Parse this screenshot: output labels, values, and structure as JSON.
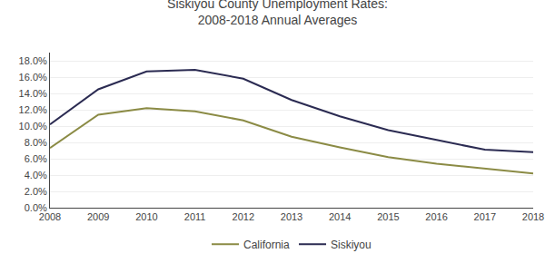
{
  "chart_data": {
    "type": "line",
    "title": "Siskiyou County Unemployment Rates:\n2008-2018 Annual Averages",
    "x": [
      2008,
      2009,
      2010,
      2011,
      2012,
      2013,
      2014,
      2015,
      2016,
      2017,
      2018
    ],
    "series": [
      {
        "name": "California",
        "color": "#8B8B45",
        "values": [
          0.073,
          0.114,
          0.122,
          0.118,
          0.107,
          0.087,
          0.074,
          0.062,
          0.054,
          0.048,
          0.042
        ]
      },
      {
        "name": "Siskiyou",
        "color": "#2B2B52",
        "values": [
          0.102,
          0.145,
          0.167,
          0.169,
          0.158,
          0.132,
          0.112,
          0.095,
          0.083,
          0.071,
          0.068
        ]
      }
    ],
    "xlim": [
      2008,
      2018
    ],
    "xticks": [
      2008,
      2009,
      2010,
      2011,
      2012,
      2013,
      2014,
      2015,
      2016,
      2017,
      2018
    ],
    "ylim": [
      0.0,
      0.19
    ],
    "yticks": [
      {
        "value": 0,
        "label": "0.0%"
      },
      {
        "value": 0.02,
        "label": "2.0%"
      },
      {
        "value": 0.04,
        "label": "4.0%"
      },
      {
        "value": 0.06,
        "label": "6.0%"
      },
      {
        "value": 0.08,
        "label": "8.0%"
      },
      {
        "value": 0.1,
        "label": "10.0%"
      },
      {
        "value": 0.12,
        "label": "12.0%"
      },
      {
        "value": 0.14,
        "label": "14.0%"
      },
      {
        "value": 0.16,
        "label": "16.0%"
      },
      {
        "value": 0.18,
        "label": "18.0%"
      }
    ],
    "grid": true,
    "legend": "bottom"
  }
}
